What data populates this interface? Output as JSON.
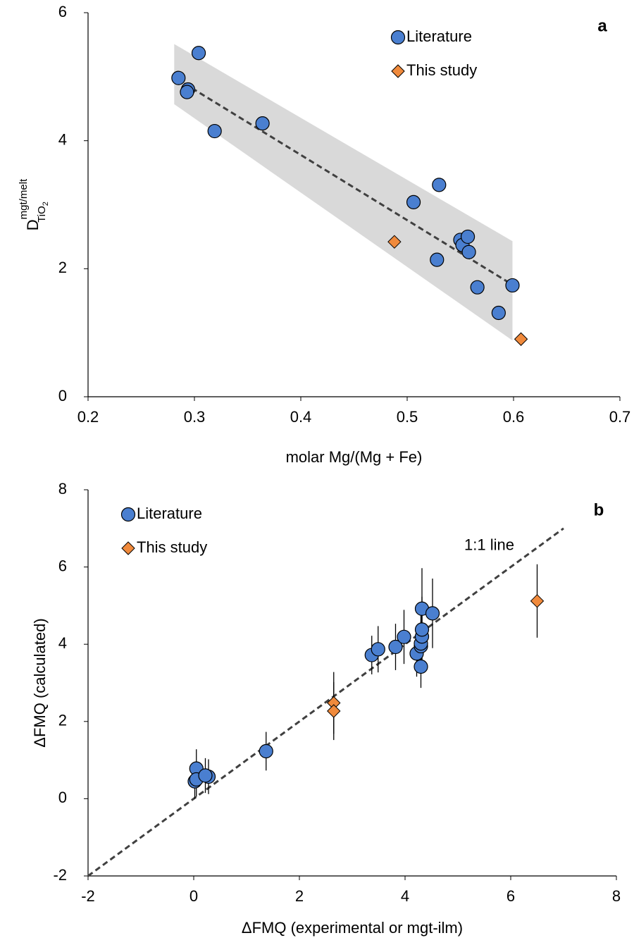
{
  "chart_data": [
    {
      "type": "scatter",
      "panel_label": "a",
      "xlabel": "molar Mg/(Mg + Fe)",
      "ylabel": {
        "main": "D",
        "sup": "mgt/melt",
        "sub": "TiO",
        "subsub": "2"
      },
      "xlim": [
        0.2,
        0.7
      ],
      "xticks": [
        0.2,
        0.3,
        0.4,
        0.5,
        0.6,
        0.7
      ],
      "ylim": [
        0,
        6
      ],
      "yticks": [
        0,
        2,
        4,
        6
      ],
      "legend": "upper right",
      "band": {
        "color": "#d9d9d9",
        "x": [
          0.281,
          0.599
        ],
        "upper": [
          5.51,
          2.43
        ],
        "lower": [
          4.57,
          0.88
        ]
      },
      "fit_line": {
        "color": "#404040",
        "x": [
          0.283,
          0.597
        ],
        "y": [
          4.97,
          1.77
        ]
      },
      "series": [
        {
          "name": "Literature",
          "color": "#4a7fd0",
          "marker": "circle",
          "x": [
            0.285,
            0.304,
            0.294,
            0.293,
            0.319,
            0.364,
            0.506,
            0.53,
            0.528,
            0.55,
            0.552,
            0.557,
            0.558,
            0.566,
            0.586,
            0.599
          ],
          "values": [
            4.98,
            5.37,
            4.8,
            4.76,
            4.15,
            4.27,
            3.04,
            3.31,
            2.14,
            2.45,
            2.37,
            2.5,
            2.26,
            1.71,
            1.31,
            1.74
          ]
        },
        {
          "name": "This study",
          "color": "#f08a3c",
          "marker": "diamond",
          "x": [
            0.488,
            0.607
          ],
          "values": [
            2.42,
            0.9
          ]
        }
      ]
    },
    {
      "type": "scatter",
      "panel_label": "b",
      "xlabel": "ΔFMQ (experimental or mgt-ilm)",
      "ylabel": {
        "main": "ΔFMQ (calculated)"
      },
      "xlim": [
        -2,
        8
      ],
      "xticks": [
        -2,
        0,
        2,
        4,
        6,
        8
      ],
      "ylim": [
        -2,
        8
      ],
      "yticks": [
        -2,
        0,
        2,
        4,
        6,
        8
      ],
      "legend": "upper left",
      "fit_line": {
        "color": "#404040",
        "x": [
          -2,
          7
        ],
        "y": [
          -2,
          7
        ],
        "label": "1:1 line"
      },
      "series": [
        {
          "name": "Literature",
          "color": "#4a7fd0",
          "marker": "circle",
          "x": [
            0.02,
            0.05,
            0.05,
            0.28,
            0.22,
            1.37,
            3.37,
            3.49,
            3.82,
            3.98,
            4.22,
            4.3,
            4.3,
            4.3,
            4.32,
            4.32,
            4.32,
            4.52
          ],
          "values": [
            0.45,
            0.78,
            0.5,
            0.57,
            0.6,
            1.23,
            3.72,
            3.87,
            3.93,
            4.19,
            3.76,
            3.42,
            3.95,
            4.02,
            4.2,
            4.38,
            4.92,
            4.8
          ],
          "errors": [
            0.45,
            0.5,
            0.45,
            0.45,
            0.45,
            0.5,
            0.5,
            0.6,
            0.6,
            0.7,
            0.6,
            0.55,
            0.65,
            0.75,
            0.8,
            0.85,
            1.05,
            0.9
          ]
        },
        {
          "name": "This study",
          "color": "#f08a3c",
          "marker": "diamond",
          "x": [
            2.65,
            2.65,
            6.5
          ],
          "values": [
            2.48,
            2.27,
            5.12
          ],
          "errors": [
            0.8,
            0.75,
            0.95
          ]
        }
      ]
    }
  ]
}
